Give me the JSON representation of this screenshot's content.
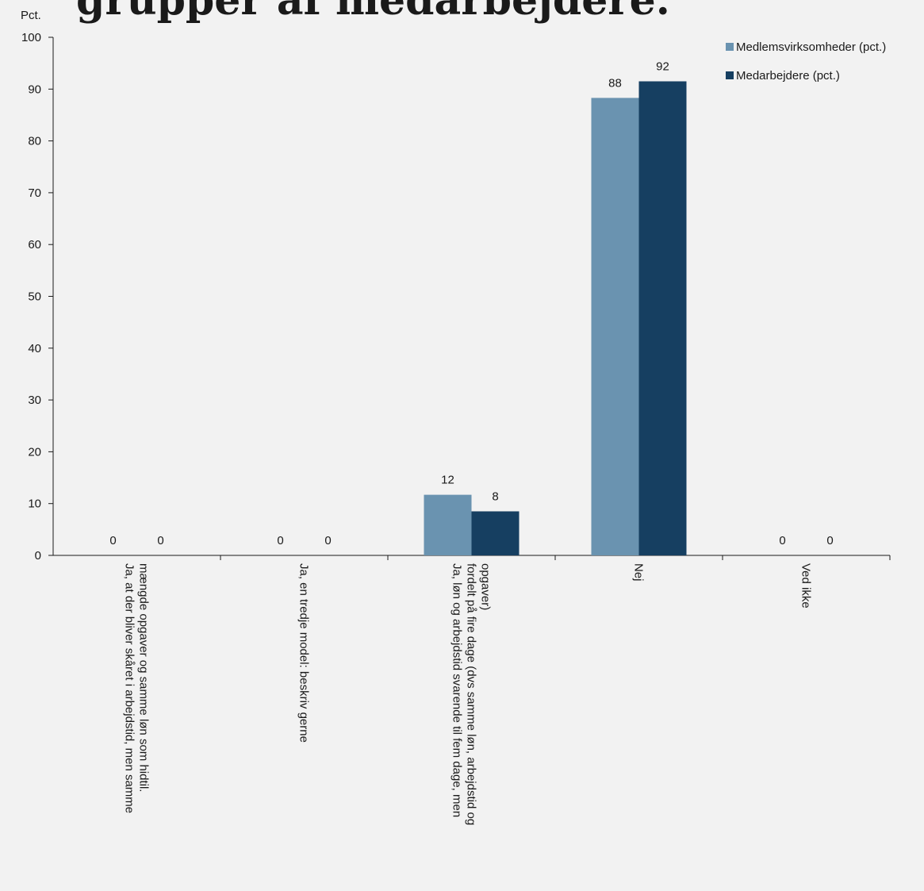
{
  "chart_data": {
    "type": "bar",
    "title": "grupper af medarbejdere.",
    "ylabel": "Pct.",
    "xlabel": "",
    "ylim": [
      0,
      100
    ],
    "yticks": [
      0,
      10,
      20,
      30,
      40,
      50,
      60,
      70,
      80,
      90,
      100
    ],
    "grid": false,
    "legend_position": "top-right",
    "categories": [
      [
        "Ja, at der bliver skåret i arbejdstid, men samme",
        "mængde opgaver og samme løn som hidtil."
      ],
      [
        "Ja, en tredje model: beskriv gerne"
      ],
      [
        "Ja, løn og arbejdstid svarende til fem dage, men",
        "fordelt på fire dage (dvs samme løn, arbejdstid og",
        "opgaver)"
      ],
      [
        "Nej"
      ],
      [
        "Ved ikke"
      ]
    ],
    "series": [
      {
        "name": "Medlemsvirksomheder (pct.)",
        "color": "#6a93b0",
        "values": [
          0,
          0,
          11.7,
          88.3,
          0
        ],
        "labels": [
          "0",
          "0",
          "12",
          "88",
          "0"
        ]
      },
      {
        "name": "Medarbejdere (pct.)",
        "color": "#163f61",
        "values": [
          0,
          0,
          8.5,
          91.5,
          0
        ],
        "labels": [
          "0",
          "0",
          "8",
          "92",
          "0"
        ]
      }
    ]
  }
}
